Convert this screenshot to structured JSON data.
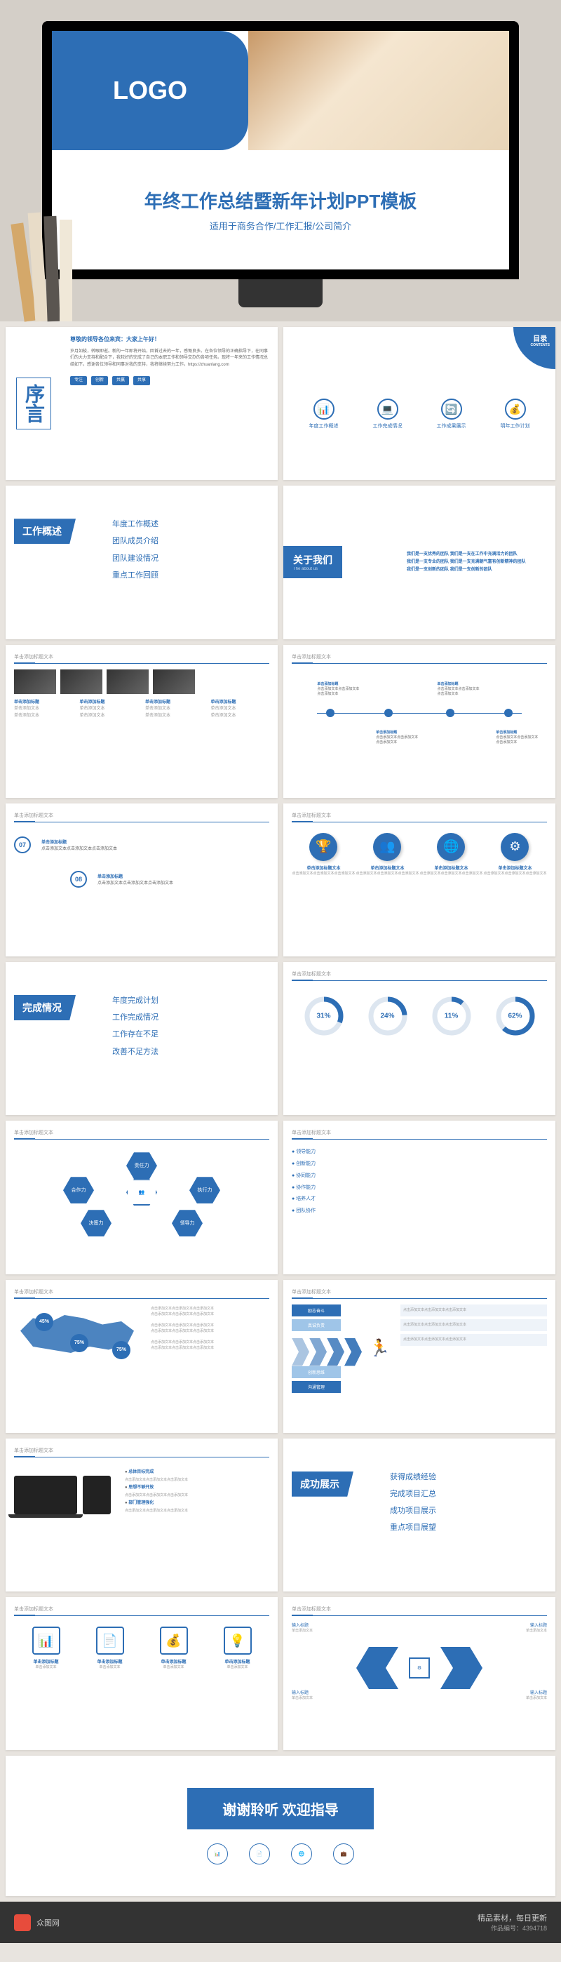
{
  "colors": {
    "primary": "#2d6eb5",
    "bg": "#e8e4df",
    "text_muted": "#999"
  },
  "hero": {
    "logo": "LOGO",
    "title": "年终工作总结暨新年计划PPT模板",
    "subtitle": "适用于商务合作/工作汇报/公司简介"
  },
  "preface": {
    "title": "序言",
    "greeting": "尊敬的领导各位来宾：大家上午好！",
    "body": "岁月如梭，转眼即逝。新的一年即将开始，回首过去的一年，感慨良多。在各位领导的正确指导下，在同事们的大力支持和配合下，我较好的完成了自己的本职工作和领导交办的各项任务。现将一年来的工作情况总结如下。感谢各位领导和同事对我的支持，我将继续努力工作。https://zhuanlang.com",
    "tags": [
      "专注",
      "创新",
      "共赢",
      "共享"
    ]
  },
  "toc": {
    "label": "目录",
    "label_en": "CONTENTS",
    "items": [
      {
        "icon": "📊",
        "text": "年度工作概述"
      },
      {
        "icon": "💻",
        "text": "工作完成情况"
      },
      {
        "icon": "🔄",
        "text": "工作成果展示"
      },
      {
        "icon": "💰",
        "text": "明年工作计划"
      }
    ]
  },
  "section1": {
    "title": "工作概述",
    "items": [
      "年度工作概述",
      "团队成员介绍",
      "团队建设情况",
      "重点工作回顾"
    ]
  },
  "about": {
    "title": "关于我们",
    "subtitle": "The about us",
    "lines": [
      "我们是一支优秀的团队  我们是一支在工作中充满活力的团队",
      "我们是一支专业的团队  我们是一支充满朝气富有创新精神的团队",
      "我们是一支创新的团队  我们是一支创新的团队"
    ]
  },
  "slide_header": "单击添加标题文本",
  "placeholder_title": "单击添加标题",
  "placeholder_text": "单击添加文本",
  "placeholder_long": "点击添加文本点击添加文本点击添加文本",
  "timeline_nums": [
    "07",
    "08"
  ],
  "section2": {
    "title": "完成情况",
    "items": [
      "年度完成计划",
      "工作完成情况",
      "工作存在不足",
      "改善不足方法"
    ]
  },
  "donuts": [
    31,
    24,
    11,
    62
  ],
  "hex_labels": [
    "责任力",
    "合作力",
    "执行力",
    "决策力",
    "领导力"
  ],
  "skills": [
    "领导能力",
    "创新能力",
    "协同能力",
    "协作能力",
    "培养人才",
    "团队协作"
  ],
  "map_pcts": [
    45,
    75,
    75
  ],
  "flow_top": [
    "励志奋斗",
    "真诚负责",
    "创新思维",
    "沟通管理"
  ],
  "devices_pts": [
    "总体目标完成",
    "思想不够开放",
    "部门管理强化"
  ],
  "section3": {
    "title": "成功展示",
    "items": [
      "获得成绩经验",
      "完成项目汇总",
      "成功项目展示",
      "重点项目展望"
    ]
  },
  "inputs": [
    "输入标题",
    "输入标题",
    "输入标题",
    "输入标题"
  ],
  "thanks": "谢谢聆听 欢迎指导",
  "footer": {
    "brand": "众图网",
    "slogan": "精品素材，每日更新",
    "meta": "作品编号：4394718"
  }
}
